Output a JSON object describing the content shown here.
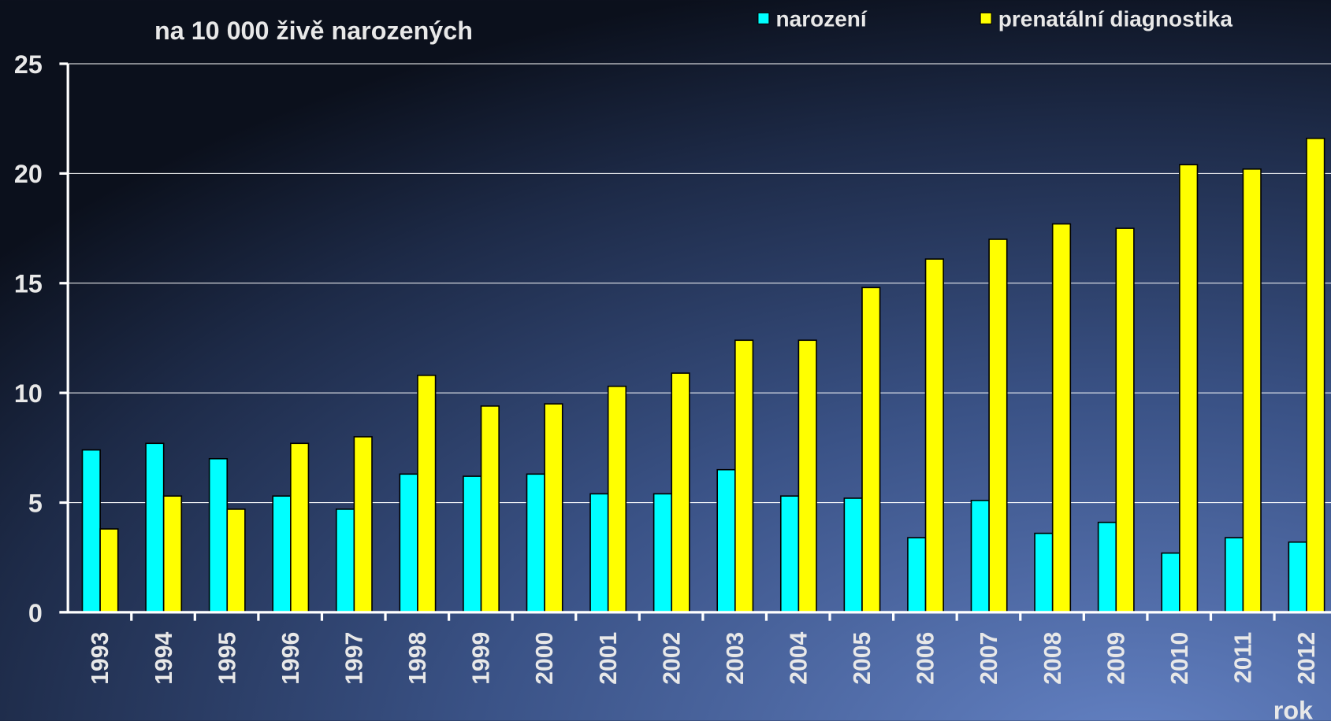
{
  "chart_data": {
    "type": "bar",
    "title": "na 10 000 živě narozených",
    "x_label": "rok",
    "categories": [
      "1993",
      "1994",
      "1995",
      "1996",
      "1997",
      "1998",
      "1999",
      "2000",
      "2001",
      "2002",
      "2003",
      "2004",
      "2005",
      "2006",
      "2007",
      "2008",
      "2009",
      "2010",
      "2011",
      "2012"
    ],
    "series": [
      {
        "name": "narození",
        "color": "#00ffff",
        "values": [
          7.4,
          7.7,
          7.0,
          5.3,
          4.7,
          6.3,
          6.2,
          6.3,
          5.4,
          5.4,
          6.5,
          5.3,
          5.2,
          3.4,
          5.1,
          3.6,
          4.1,
          2.7,
          3.4,
          3.2
        ]
      },
      {
        "name": "prenatální diagnostika",
        "color": "#ffff00",
        "values": [
          3.8,
          5.3,
          4.7,
          7.7,
          8.0,
          10.8,
          9.4,
          9.5,
          10.3,
          10.9,
          12.4,
          12.4,
          14.8,
          16.1,
          17.0,
          17.7,
          17.5,
          20.4,
          20.2,
          21.6
        ]
      }
    ],
    "ylim": [
      0,
      25
    ],
    "yticks": [
      0,
      5,
      10,
      15,
      20,
      25
    ],
    "grid": true
  }
}
